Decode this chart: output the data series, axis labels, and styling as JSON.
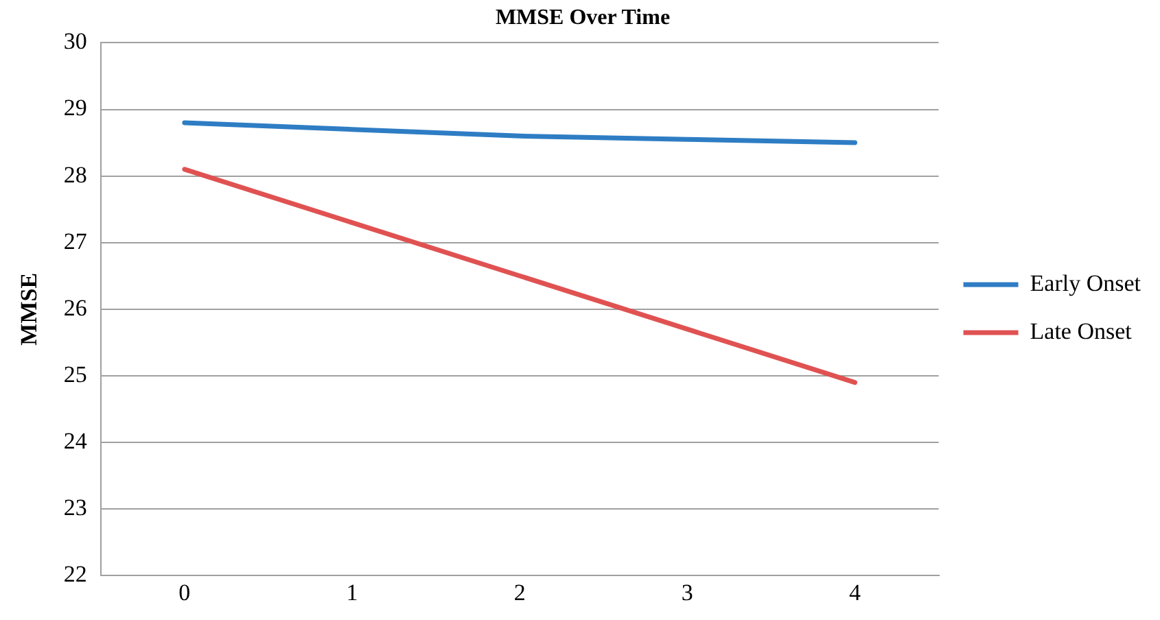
{
  "chart_data": {
    "type": "line",
    "title": "MMSE Over Time",
    "ylabel": "MMSE",
    "categories": [
      "0",
      "1",
      "2",
      "3",
      "4"
    ],
    "series": [
      {
        "name": "Early Onset",
        "color": "#2e7dc4",
        "values": [
          28.8,
          28.7,
          28.6,
          28.55,
          28.5
        ]
      },
      {
        "name": "Late Onset",
        "color": "#e05252",
        "values": [
          28.1,
          27.3,
          26.5,
          25.7,
          24.9
        ]
      }
    ],
    "ylim": [
      22,
      30
    ],
    "yticks": [
      22,
      23,
      24,
      25,
      26,
      27,
      28,
      29,
      30
    ],
    "grid": "y",
    "legend": "right",
    "marker": "none",
    "line_style": "solid"
  }
}
